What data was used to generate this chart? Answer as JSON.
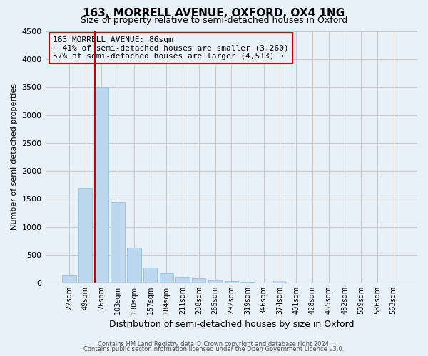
{
  "title": "163, MORRELL AVENUE, OXFORD, OX4 1NG",
  "subtitle": "Size of property relative to semi-detached houses in Oxford",
  "xlabel": "Distribution of semi-detached houses by size in Oxford",
  "ylabel": "Number of semi-detached properties",
  "bar_labels": [
    "22sqm",
    "49sqm",
    "76sqm",
    "103sqm",
    "130sqm",
    "157sqm",
    "184sqm",
    "211sqm",
    "238sqm",
    "265sqm",
    "292sqm",
    "319sqm",
    "346sqm",
    "374sqm",
    "401sqm",
    "428sqm",
    "455sqm",
    "482sqm",
    "509sqm",
    "536sqm",
    "563sqm"
  ],
  "bar_values": [
    140,
    1700,
    3500,
    1440,
    620,
    270,
    165,
    95,
    70,
    45,
    20,
    8,
    3,
    40,
    0,
    0,
    0,
    0,
    0,
    0,
    0
  ],
  "bar_color": "#bdd7ee",
  "bar_edge_color": "#9ec6e0",
  "vline_color": "#cc0000",
  "vline_pos": 2.5,
  "annotation_text_line1": "163 MORRELL AVENUE: 86sqm",
  "annotation_text_line2": "← 41% of semi-detached houses are smaller (3,260)",
  "annotation_text_line3": "57% of semi-detached houses are larger (4,513) →",
  "ylim": [
    0,
    4500
  ],
  "yticks": [
    0,
    500,
    1000,
    1500,
    2000,
    2500,
    3000,
    3500,
    4000,
    4500
  ],
  "grid_color": "#cccccc",
  "bg_color": "#e8f0f8",
  "footer_line1": "Contains HM Land Registry data © Crown copyright and database right 2024.",
  "footer_line2": "Contains public sector information licensed under the Open Government Licence v3.0."
}
